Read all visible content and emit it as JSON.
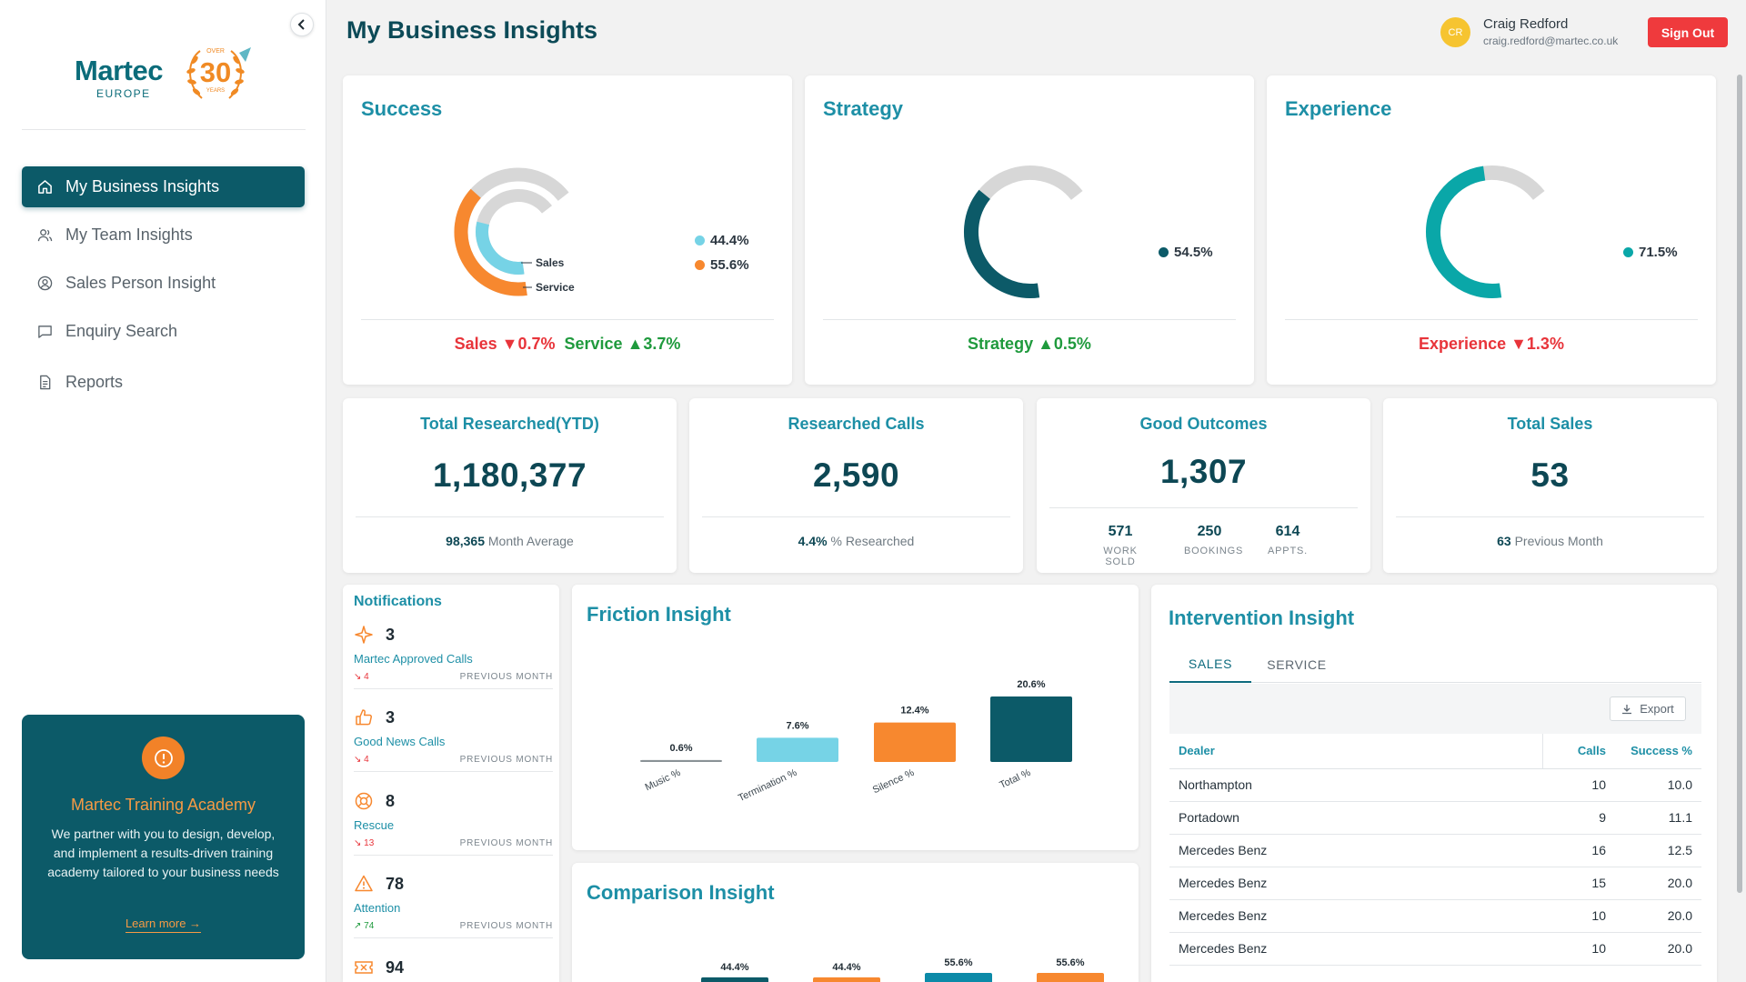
{
  "sidebar": {
    "logo": {
      "word": "Martec",
      "sub": "EUROPE",
      "anniversary": "30",
      "over": "OVER",
      "years": "YEARS"
    },
    "nav": [
      {
        "label": "My Business Insights",
        "icon": "home-icon",
        "active": true
      },
      {
        "label": "My Team Insights",
        "icon": "users-icon",
        "active": false
      },
      {
        "label": "Sales Person Insight",
        "icon": "user-circle-icon",
        "active": false
      },
      {
        "label": "Enquiry Search",
        "icon": "message-icon",
        "active": false
      },
      {
        "label": "Reports",
        "icon": "document-icon",
        "active": false
      }
    ],
    "academy": {
      "title": "Martec Training Academy",
      "text": "We partner with you to design, develop, and implement a results-driven training academy tailored to your business needs",
      "link": "Learn more →"
    }
  },
  "header": {
    "title": "My Business Insights",
    "user": {
      "initials": "CR",
      "name": "Craig Redford",
      "email": "craig.redford@martec.co.uk"
    },
    "signout": "Sign Out"
  },
  "gauges": {
    "success": {
      "title": "Success",
      "inner_label": "Sales",
      "outer_label": "Service",
      "legend": [
        "44.4%",
        "55.6%"
      ],
      "inner_value": 44.4,
      "outer_value": 55.6,
      "trend": {
        "a_label": "Sales",
        "a_value": "▼0.7%",
        "b_label": "Service",
        "b_value": "▲3.7%"
      }
    },
    "strategy": {
      "title": "Strategy",
      "legend": "54.5%",
      "value": 54.5,
      "trend": {
        "label": "Strategy",
        "value": "▲0.5%"
      }
    },
    "experience": {
      "title": "Experience",
      "legend": "71.5%",
      "value": 71.5,
      "trend": {
        "label": "Experience",
        "value": "▼1.3%"
      }
    }
  },
  "colors": {
    "teal_dark": "#0c5a68",
    "teal": "#0aa7a8",
    "orange": "#f7882f",
    "light_blue": "#76d3e6",
    "red": "#e8343a",
    "green": "#1f9a3d",
    "grey": "#d7d7d7"
  },
  "stats": {
    "total_researched": {
      "title": "Total Researched(YTD)",
      "value": "1,180,377",
      "foot_value": "98,365",
      "foot_label": "Month Average"
    },
    "researched_calls": {
      "title": "Researched Calls",
      "value": "2,590",
      "foot_value": "4.4%",
      "foot_label": "% Researched"
    },
    "good_outcomes": {
      "title": "Good Outcomes",
      "value": "1,307",
      "subs": [
        {
          "value": "571",
          "label": "WORK SOLD"
        },
        {
          "value": "250",
          "label": "BOOKINGS"
        },
        {
          "value": "614",
          "label": "APPTS."
        }
      ]
    },
    "total_sales": {
      "title": "Total Sales",
      "value": "53",
      "foot_value": "63",
      "foot_label": "Previous Month"
    }
  },
  "notifications": {
    "title": "Notifications",
    "previous_label": "PREVIOUS MONTH",
    "items": [
      {
        "icon": "sparkle-icon",
        "count": "3",
        "label": "Martec Approved Calls",
        "prev": "4",
        "trend": "down"
      },
      {
        "icon": "thumbs-up-icon",
        "count": "3",
        "label": "Good News Calls",
        "prev": "4",
        "trend": "down"
      },
      {
        "icon": "lifebuoy-icon",
        "count": "8",
        "label": "Rescue",
        "prev": "13",
        "trend": "down"
      },
      {
        "icon": "warning-icon",
        "count": "78",
        "label": "Attention",
        "prev": "74",
        "trend": "up"
      },
      {
        "icon": "ticket-icon",
        "count": "94",
        "label": "",
        "prev": "",
        "trend": ""
      }
    ]
  },
  "chart_data": [
    {
      "type": "bar",
      "title": "Friction Insight",
      "categories": [
        "Music %",
        "Termination %",
        "Silence %",
        "Total %"
      ],
      "values": [
        0.6,
        7.6,
        12.4,
        20.6
      ],
      "labels": [
        "0.6%",
        "7.6%",
        "12.4%",
        "20.6%"
      ],
      "colors": [
        "#8a9296",
        "#76d3e6",
        "#f7882f",
        "#0c5a68"
      ]
    },
    {
      "type": "bar",
      "title": "Comparison Insight",
      "labels": [
        "44.4%",
        "44.4%",
        "55.6%",
        "55.6%"
      ],
      "values": [
        44.4,
        44.4,
        55.6,
        55.6
      ],
      "colors": [
        "#0c5a68",
        "#f7882f",
        "#0c8aa8",
        "#f7882f"
      ]
    }
  ],
  "intervention": {
    "title": "Intervention Insight",
    "tabs": [
      "SALES",
      "SERVICE"
    ],
    "export": "Export",
    "columns": [
      "Dealer",
      "Calls",
      "Success %"
    ],
    "rows": [
      [
        "Northampton",
        "10",
        "10.0"
      ],
      [
        "Portadown",
        "9",
        "11.1"
      ],
      [
        "Mercedes Benz",
        "16",
        "12.5"
      ],
      [
        "Mercedes Benz",
        "15",
        "20.0"
      ],
      [
        "Mercedes Benz",
        "10",
        "20.0"
      ],
      [
        "Mercedes Benz",
        "10",
        "20.0"
      ]
    ]
  }
}
